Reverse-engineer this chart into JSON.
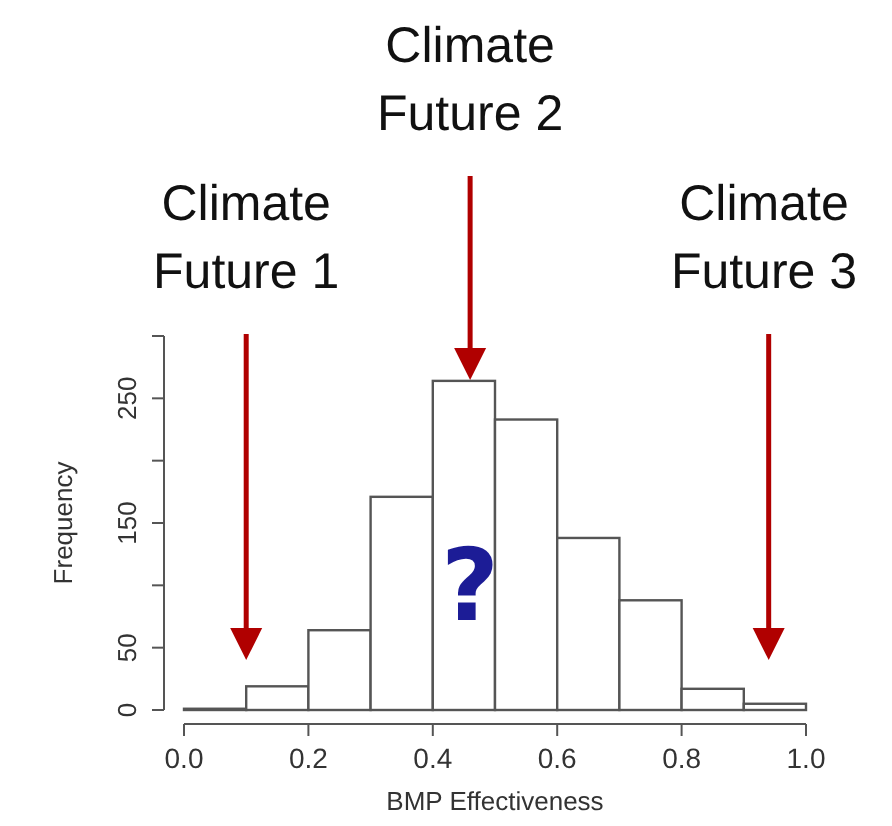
{
  "chart_data": {
    "type": "histogram",
    "xlabel": "BMP Effectiveness",
    "ylabel": "Frequency",
    "bins": [
      0,
      0.1,
      0.2,
      0.3,
      0.4,
      0.5,
      0.6,
      0.7,
      0.8,
      0.9,
      1.0
    ],
    "values": [
      1,
      19,
      64,
      171,
      264,
      233,
      138,
      88,
      17,
      5
    ],
    "color": "#ffffff",
    "xlim": [
      0,
      1
    ],
    "xticks": [
      {
        "value": 0,
        "label": "0.0"
      },
      0.2,
      0.4,
      0.6,
      0.8,
      {
        "value": 1,
        "label": "1.0"
      }
    ],
    "ylim": [
      0,
      300
    ],
    "yticks": [
      0,
      50,
      {
        "value": 100,
        "label": null
      },
      150,
      {
        "value": 200,
        "label": null
      },
      250,
      {
        "value": 300,
        "label": null
      }
    ],
    "grid": false,
    "annotations": [
      "Climate Future 1",
      "Climate Future 2",
      "Climate Future 3",
      "?"
    ]
  }
}
